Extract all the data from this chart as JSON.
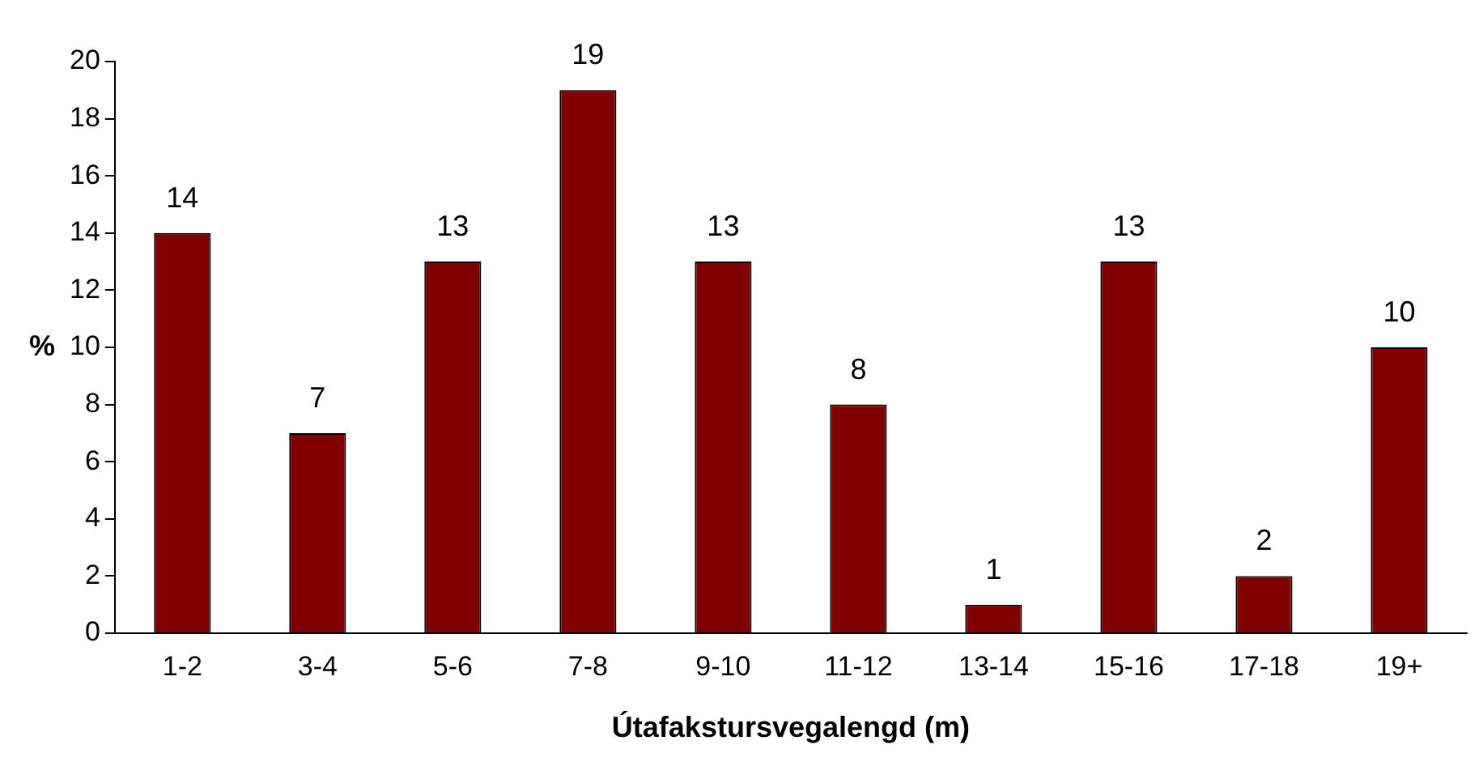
{
  "chart_data": {
    "type": "bar",
    "xlabel": "Útafakstursvegalengd (m)",
    "ylabel": "%",
    "categories": [
      "1-2",
      "3-4",
      "5-6",
      "7-8",
      "9-10",
      "11-12",
      "13-14",
      "15-16",
      "17-18",
      "19+"
    ],
    "values": [
      14,
      7,
      13,
      19,
      13,
      8,
      1,
      13,
      2,
      10
    ],
    "color": "#800000",
    "ylim": [
      0,
      20
    ],
    "yticks": [
      0,
      2,
      4,
      6,
      8,
      10,
      12,
      14,
      16,
      18,
      20
    ],
    "grid": false,
    "legend": false,
    "data_labels": true
  }
}
